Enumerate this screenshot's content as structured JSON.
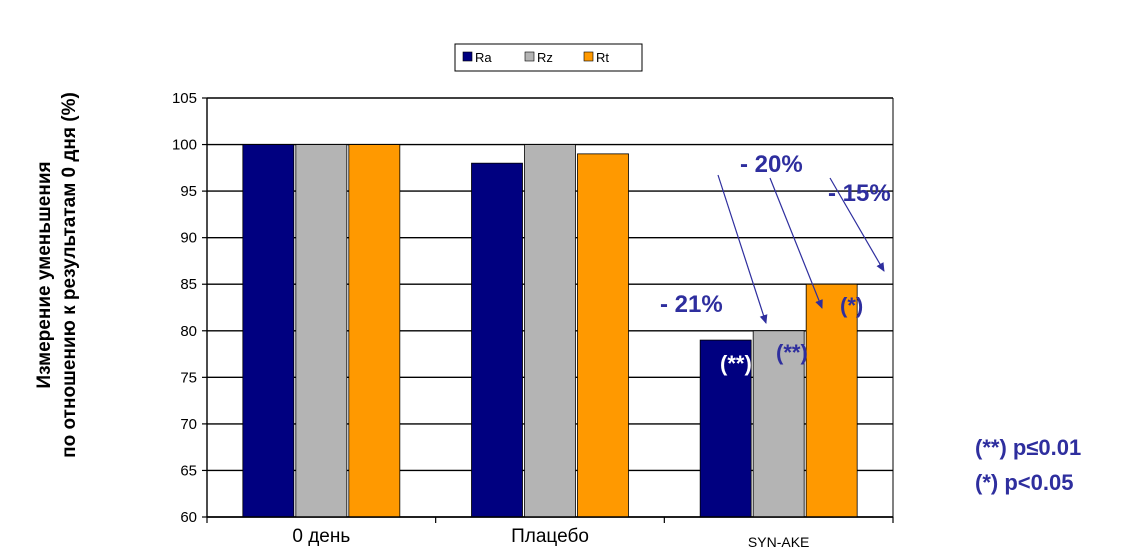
{
  "chart_data": {
    "type": "bar",
    "ylabel": [
      "Измерение уменьшения",
      "по отношению к результатам 0 дня (%)"
    ],
    "categories": [
      "0 день",
      "Плацебо",
      "SYN-AKE"
    ],
    "ylim": [
      60,
      105
    ],
    "yticks": [
      60,
      65,
      70,
      75,
      80,
      85,
      90,
      95,
      100,
      105
    ],
    "grid": true,
    "legend_position": "top",
    "series": [
      {
        "name": "Ra",
        "color": "#000080",
        "values": [
          100,
          98,
          79
        ]
      },
      {
        "name": "Rz",
        "color": "#b4b4b4",
        "values": [
          100,
          100,
          80
        ]
      },
      {
        "name": "Rt",
        "color": "#ff9900",
        "values": [
          100,
          99,
          85
        ]
      }
    ],
    "annotations": {
      "percent_labels": [
        {
          "text": "- 21%",
          "series": "Ra"
        },
        {
          "text": "- 20%",
          "series": "Rz"
        },
        {
          "text": "- 15%",
          "series": "Rt"
        }
      ],
      "significance_labels": [
        {
          "text": "(**)",
          "series": "Ra",
          "color": "#ffffff"
        },
        {
          "text": "(**)",
          "series": "Rz",
          "color": "#2e2e9e"
        },
        {
          "text": "(*)",
          "series": "Rt",
          "color": "#2e2e9e"
        }
      ],
      "footnotes": [
        "(**)  p≤0.01",
        "(*)  p<0.05"
      ]
    }
  }
}
